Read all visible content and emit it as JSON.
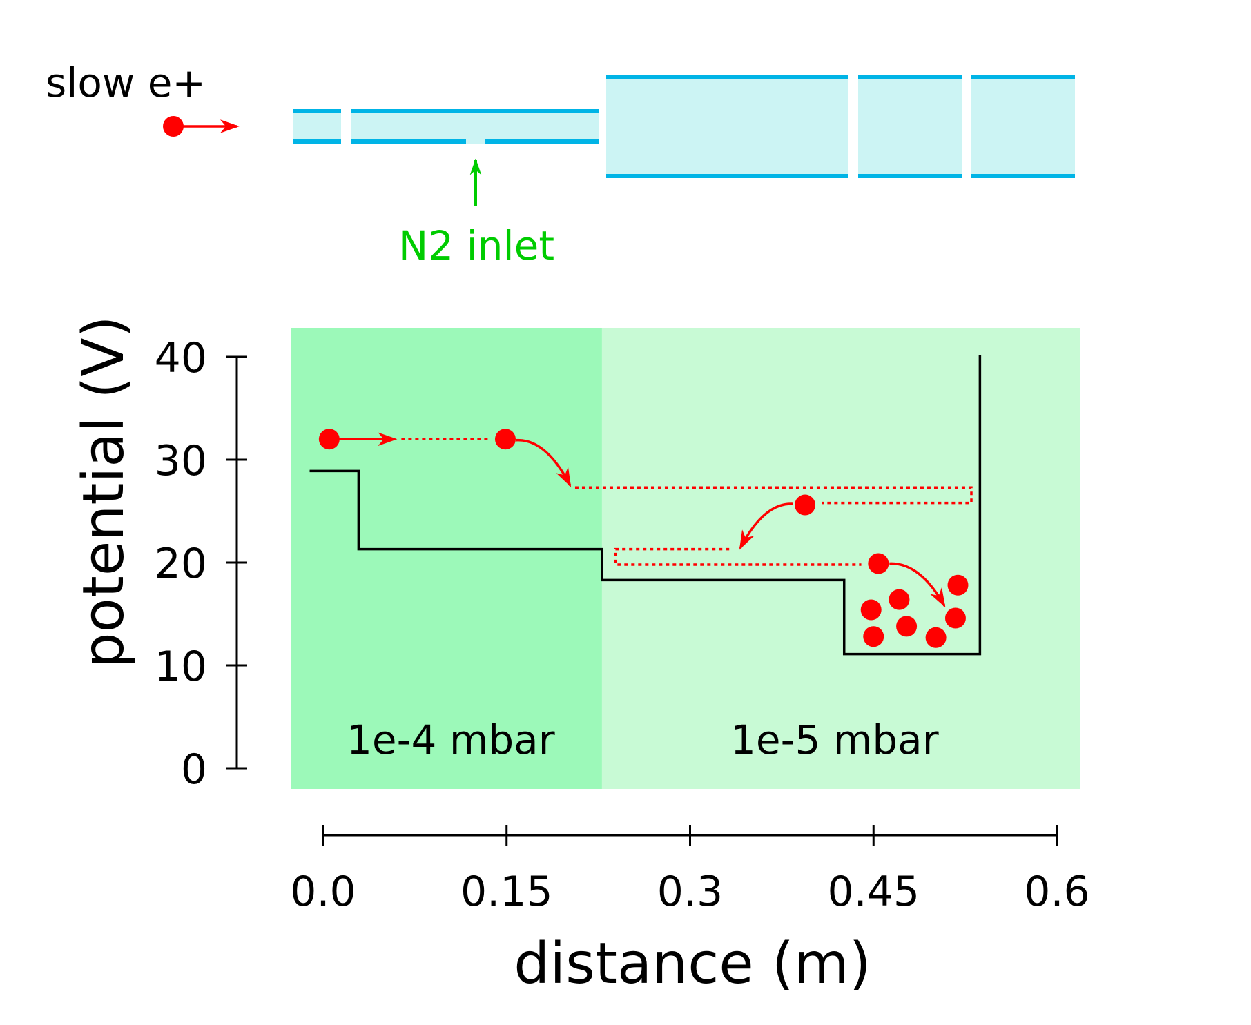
{
  "figure": {
    "top_label": "slow e+",
    "inlet_label": "N2 inlet",
    "colors": {
      "positron": "#ff0000",
      "electrode_band": "#00b4e6",
      "electrode_fill": "#ccf4f4",
      "region_high_pressure": "#9cf9b9",
      "region_low_pressure": "#c8fad5",
      "inlet": "#00cc00",
      "potential_line": "#000000"
    },
    "electrodes": [
      {
        "name": "electrode-1",
        "x_start": -0.012,
        "x_end": 0.027,
        "size": "small"
      },
      {
        "name": "electrode-2",
        "x_start": 0.023,
        "x_end": 0.226,
        "size": "small",
        "has_inlet": true
      },
      {
        "name": "electrode-3",
        "x_start": 0.232,
        "x_end": 0.429,
        "size": "large"
      },
      {
        "name": "electrode-4",
        "x_start": 0.438,
        "x_end": 0.522,
        "size": "large"
      },
      {
        "name": "electrode-5",
        "x_start": 0.53,
        "x_end": 0.615,
        "size": "large"
      }
    ]
  },
  "chart_data": {
    "type": "line",
    "title": "",
    "xlabel": "distance (m)",
    "ylabel": "potential (V)",
    "xlim": [
      0.0,
      0.6
    ],
    "ylim": [
      0,
      40
    ],
    "x_ticks": [
      0.0,
      0.15,
      0.3,
      0.45,
      0.6
    ],
    "x_tick_labels": [
      "0.0",
      "0.15",
      "0.3",
      "0.45",
      "0.6"
    ],
    "y_ticks": [
      0,
      10,
      20,
      30,
      40
    ],
    "y_tick_labels": [
      "0",
      "10",
      "20",
      "30",
      "40"
    ],
    "grid": false,
    "legend": "none",
    "regions": [
      {
        "label": "1e-4 mbar",
        "x_start": -0.026,
        "x_end": 0.228,
        "color": "#9cf9b9"
      },
      {
        "label": "1e-5 mbar",
        "x_start": 0.228,
        "x_end": 0.619,
        "color": "#c8fad5"
      }
    ],
    "series": [
      {
        "name": "potential",
        "type": "step",
        "x": [
          -0.011,
          0.029,
          0.029,
          0.228,
          0.228,
          0.426,
          0.426,
          0.537,
          0.537
        ],
        "y": [
          28.9,
          28.9,
          21.3,
          21.3,
          18.3,
          18.3,
          11.1,
          11.1,
          40.2
        ]
      }
    ],
    "annotations": {
      "incoming_positron": {
        "x": 0.005,
        "y": 32.0,
        "arrow_to_x": 0.059
      },
      "trajectory": [
        {
          "kind": "dotted",
          "points": [
            [
              0.064,
              32.0
            ],
            [
              0.137,
              32.0
            ]
          ]
        },
        {
          "kind": "positron",
          "x": 0.149,
          "y": 32.0
        },
        {
          "kind": "curved-arrow",
          "from": [
            0.158,
            31.9
          ],
          "to": [
            0.202,
            27.5
          ]
        },
        {
          "kind": "dotted",
          "points": [
            [
              0.206,
              27.3
            ],
            [
              0.53,
              27.3
            ],
            [
              0.53,
              25.8
            ],
            [
              0.408,
              25.8
            ]
          ]
        },
        {
          "kind": "positron",
          "x": 0.394,
          "y": 25.6
        },
        {
          "kind": "curved-arrow",
          "from": [
            0.384,
            25.7
          ],
          "to": [
            0.341,
            21.4
          ]
        },
        {
          "kind": "dotted",
          "points": [
            [
              0.332,
              21.3
            ],
            [
              0.239,
              21.3
            ],
            [
              0.239,
              19.8
            ],
            [
              0.44,
              19.8
            ]
          ]
        },
        {
          "kind": "positron",
          "x": 0.454,
          "y": 19.9
        },
        {
          "kind": "curved-arrow",
          "from": [
            0.463,
            19.9
          ],
          "to": [
            0.508,
            15.8
          ]
        }
      ],
      "trapped_positrons": [
        {
          "x": 0.448,
          "y": 15.4
        },
        {
          "x": 0.471,
          "y": 16.4
        },
        {
          "x": 0.45,
          "y": 12.8
        },
        {
          "x": 0.477,
          "y": 13.8
        },
        {
          "x": 0.501,
          "y": 12.7
        },
        {
          "x": 0.517,
          "y": 14.6
        },
        {
          "x": 0.519,
          "y": 17.8
        }
      ]
    }
  }
}
